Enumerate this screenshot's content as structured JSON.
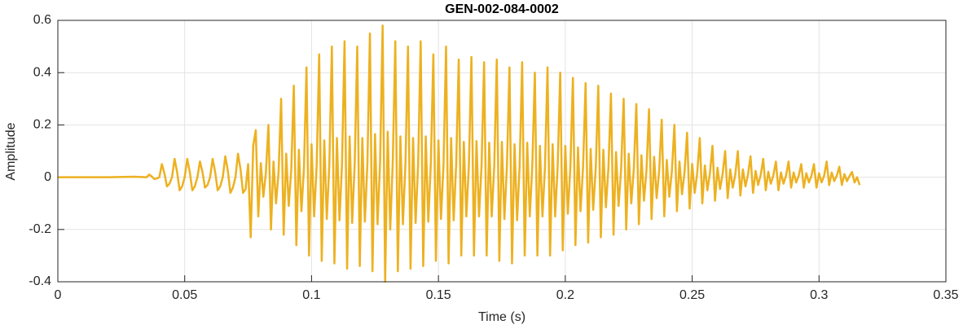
{
  "chart_data": {
    "type": "line",
    "title": "GEN-002-084-0002",
    "xlabel": "Time (s)",
    "ylabel": "Amplitude",
    "color": "#EDB120",
    "grid": true,
    "xlim": [
      0,
      0.35
    ],
    "xticks": [
      0,
      0.05,
      0.1,
      0.15,
      0.2,
      0.25,
      0.3,
      0.35
    ],
    "ylim": [
      -0.4,
      0.6
    ],
    "yticks": [
      -0.4,
      -0.2,
      0,
      0.2,
      0.4,
      0.6
    ],
    "x": [
      0,
      0.01,
      0.02,
      0.03,
      0.035,
      0.036,
      0.037,
      0.038,
      0.039,
      0.04,
      0.041,
      0.042,
      0.043,
      0.044,
      0.045,
      0.046,
      0.047,
      0.048,
      0.049,
      0.05,
      0.051,
      0.052,
      0.053,
      0.054,
      0.055,
      0.056,
      0.057,
      0.058,
      0.059,
      0.06,
      0.061,
      0.062,
      0.063,
      0.064,
      0.065,
      0.066,
      0.067,
      0.068,
      0.069,
      0.07,
      0.071,
      0.072,
      0.073,
      0.074,
      0.075,
      0.076,
      0.077,
      0.078,
      0.079,
      0.08,
      0.081,
      0.082,
      0.083,
      0.084,
      0.085,
      0.086,
      0.087,
      0.088,
      0.089,
      0.09,
      0.091,
      0.092,
      0.093,
      0.094,
      0.095,
      0.096,
      0.097,
      0.098,
      0.099,
      0.1,
      0.101,
      0.102,
      0.103,
      0.104,
      0.105,
      0.106,
      0.107,
      0.108,
      0.109,
      0.11,
      0.111,
      0.112,
      0.113,
      0.114,
      0.115,
      0.116,
      0.117,
      0.118,
      0.119,
      0.12,
      0.121,
      0.122,
      0.123,
      0.124,
      0.125,
      0.126,
      0.127,
      0.128,
      0.129,
      0.13,
      0.131,
      0.132,
      0.133,
      0.134,
      0.135,
      0.136,
      0.137,
      0.138,
      0.139,
      0.14,
      0.141,
      0.142,
      0.143,
      0.144,
      0.145,
      0.146,
      0.147,
      0.148,
      0.149,
      0.15,
      0.151,
      0.152,
      0.153,
      0.154,
      0.155,
      0.156,
      0.157,
      0.158,
      0.159,
      0.16,
      0.161,
      0.162,
      0.163,
      0.164,
      0.165,
      0.166,
      0.167,
      0.168,
      0.169,
      0.17,
      0.171,
      0.172,
      0.173,
      0.174,
      0.175,
      0.176,
      0.177,
      0.178,
      0.179,
      0.18,
      0.181,
      0.182,
      0.183,
      0.184,
      0.185,
      0.186,
      0.187,
      0.188,
      0.189,
      0.19,
      0.191,
      0.192,
      0.193,
      0.194,
      0.195,
      0.196,
      0.197,
      0.198,
      0.199,
      0.2,
      0.201,
      0.202,
      0.203,
      0.204,
      0.205,
      0.206,
      0.207,
      0.208,
      0.209,
      0.21,
      0.211,
      0.212,
      0.213,
      0.214,
      0.215,
      0.216,
      0.217,
      0.218,
      0.219,
      0.22,
      0.221,
      0.222,
      0.223,
      0.224,
      0.225,
      0.226,
      0.227,
      0.228,
      0.229,
      0.23,
      0.231,
      0.232,
      0.233,
      0.234,
      0.235,
      0.236,
      0.237,
      0.238,
      0.239,
      0.24,
      0.241,
      0.242,
      0.243,
      0.244,
      0.245,
      0.246,
      0.247,
      0.248,
      0.249,
      0.25,
      0.251,
      0.252,
      0.253,
      0.254,
      0.255,
      0.256,
      0.257,
      0.258,
      0.259,
      0.26,
      0.261,
      0.262,
      0.263,
      0.264,
      0.265,
      0.266,
      0.267,
      0.268,
      0.269,
      0.27,
      0.271,
      0.272,
      0.273,
      0.274,
      0.275,
      0.276,
      0.277,
      0.278,
      0.279,
      0.28,
      0.281,
      0.282,
      0.283,
      0.284,
      0.285,
      0.286,
      0.287,
      0.288,
      0.289,
      0.29,
      0.291,
      0.292,
      0.293,
      0.294,
      0.295,
      0.296,
      0.297,
      0.298,
      0.299,
      0.3,
      0.301,
      0.302,
      0.303,
      0.304,
      0.305,
      0.306,
      0.307,
      0.308,
      0.309,
      0.31,
      0.311,
      0.312,
      0.313,
      0.314,
      0.315,
      0.316
    ],
    "values": [
      0,
      0,
      0,
      0.002,
      0,
      0.01,
      0.003,
      -0.007,
      -0.005,
      0,
      0.05,
      0.015,
      -0.035,
      -0.025,
      0,
      0.07,
      0.02,
      -0.05,
      -0.035,
      0,
      0.07,
      0.02,
      -0.05,
      -0.035,
      0,
      0.06,
      0.02,
      -0.04,
      -0.03,
      0,
      0.07,
      0.02,
      -0.05,
      -0.035,
      0,
      0.08,
      0.025,
      -0.06,
      -0.04,
      0,
      0.09,
      0.03,
      -0.06,
      -0.045,
      0.05,
      -0.23,
      0.12,
      0.18,
      -0.15,
      0.054,
      -0.075,
      0.018,
      0.2,
      -0.2,
      0.06,
      -0.1,
      0.02,
      0.3,
      -0.22,
      0.09,
      -0.11,
      0.03,
      0.35,
      -0.26,
      0.105,
      -0.13,
      0.035,
      0.42,
      -0.3,
      0.126,
      -0.15,
      0.042,
      0.47,
      -0.32,
      0.141,
      -0.16,
      0.047,
      0.5,
      -0.33,
      0.15,
      -0.165,
      0.05,
      0.52,
      -0.35,
      0.156,
      -0.175,
      0.052,
      0.5,
      -0.34,
      0.15,
      -0.17,
      0.05,
      0.55,
      -0.36,
      0.165,
      -0.18,
      0.055,
      0.58,
      -0.4,
      0.174,
      -0.2,
      0.058,
      0.52,
      -0.36,
      0.156,
      -0.18,
      0.052,
      0.5,
      -0.35,
      0.15,
      -0.175,
      0.05,
      0.52,
      -0.34,
      0.156,
      -0.17,
      0.052,
      0.47,
      -0.32,
      0.141,
      -0.16,
      0.047,
      0.5,
      -0.33,
      0.15,
      -0.165,
      0.05,
      0.45,
      -0.3,
      0.135,
      -0.15,
      0.045,
      0.46,
      -0.3,
      0.138,
      -0.15,
      0.046,
      0.44,
      -0.3,
      0.132,
      -0.15,
      0.044,
      0.45,
      -0.32,
      0.135,
      -0.16,
      0.045,
      0.42,
      -0.33,
      0.126,
      -0.165,
      0.042,
      0.44,
      -0.3,
      0.132,
      -0.15,
      0.044,
      0.4,
      -0.3,
      0.12,
      -0.15,
      0.04,
      0.42,
      -0.3,
      0.126,
      -0.15,
      0.042,
      0.4,
      -0.28,
      0.12,
      -0.14,
      0.04,
      0.38,
      -0.26,
      0.114,
      -0.13,
      0.038,
      0.36,
      -0.25,
      0.108,
      -0.125,
      0.036,
      0.35,
      -0.23,
      0.105,
      -0.115,
      0.035,
      0.32,
      -0.22,
      0.096,
      -0.11,
      0.032,
      0.3,
      -0.2,
      0.09,
      -0.1,
      0.03,
      0.28,
      -0.18,
      0.084,
      -0.09,
      0.028,
      0.26,
      -0.16,
      0.078,
      -0.08,
      0.026,
      0.22,
      -0.15,
      0.066,
      -0.075,
      0.022,
      0.2,
      -0.13,
      0.06,
      -0.065,
      0.02,
      0.17,
      -0.12,
      0.051,
      -0.06,
      0.017,
      0.15,
      -0.1,
      0.045,
      -0.05,
      0.015,
      0.12,
      -0.09,
      0.036,
      -0.045,
      0.012,
      0.1,
      -0.08,
      0.03,
      -0.04,
      0.01,
      0.1,
      -0.07,
      0.03,
      -0.035,
      0.01,
      0.08,
      -0.06,
      0.024,
      -0.03,
      0.008,
      0.07,
      -0.05,
      0.021,
      -0.025,
      0.007,
      0.06,
      -0.05,
      0.018,
      -0.025,
      0.006,
      0.06,
      -0.04,
      0.018,
      -0.02,
      0.006,
      0.05,
      -0.04,
      0.015,
      -0.02,
      0.005,
      0.05,
      -0.04,
      0.015,
      -0.02,
      0.005,
      0.06,
      -0.03,
      0.018,
      -0.015,
      0.006,
      0.04,
      -0.03,
      0.012,
      -0.015,
      0.004,
      0.02,
      -0.02,
      0,
      -0.03
    ]
  }
}
